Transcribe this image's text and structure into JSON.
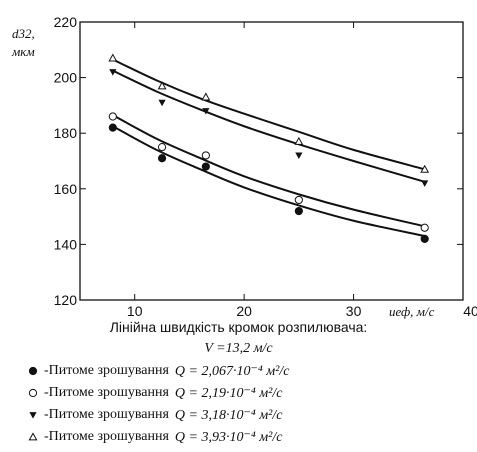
{
  "chart_data": {
    "type": "scatter",
    "title": "",
    "ylabel": "d32,",
    "ylabel_unit": "мкм",
    "xlabel": "uеф, м/с",
    "xlim": [
      5,
      40
    ],
    "ylim": [
      120,
      220
    ],
    "x_ticks": [
      10,
      20,
      30,
      40
    ],
    "y_ticks": [
      120,
      140,
      160,
      180,
      200,
      220
    ],
    "grid": false,
    "legend_position": "bottom",
    "series": [
      {
        "name": "-Питоме зрошування",
        "formula": "Q = 2,067·10⁻⁴ м²/с",
        "marker": "filled-circle",
        "points": [
          [
            8,
            182
          ],
          [
            12.5,
            171
          ],
          [
            16.5,
            168
          ],
          [
            25,
            152
          ],
          [
            36.5,
            142
          ]
        ],
        "fit": [
          [
            8,
            182.5
          ],
          [
            12,
            174
          ],
          [
            16,
            167
          ],
          [
            20,
            160.5
          ],
          [
            25,
            154
          ],
          [
            30,
            148.5
          ],
          [
            36.5,
            143
          ]
        ]
      },
      {
        "name": "-Питоме зрошування",
        "formula": "Q = 2,19·10⁻⁴ м²/с",
        "marker": "open-circle",
        "points": [
          [
            8,
            186
          ],
          [
            12.5,
            175
          ],
          [
            16.5,
            172
          ],
          [
            25,
            156
          ],
          [
            36.5,
            146
          ]
        ],
        "fit": [
          [
            8,
            186.5
          ],
          [
            12,
            178
          ],
          [
            16,
            171
          ],
          [
            20,
            164.5
          ],
          [
            25,
            158
          ],
          [
            30,
            152.5
          ],
          [
            36.5,
            146.5
          ]
        ]
      },
      {
        "name": "-Питоме зрошування",
        "formula": "Q = 3,18·10⁻⁴ м²/с",
        "marker": "filled-triangle-down",
        "points": [
          [
            8,
            202
          ],
          [
            12.5,
            191
          ],
          [
            16.5,
            188
          ],
          [
            25,
            172
          ],
          [
            36.5,
            162
          ]
        ],
        "fit": [
          [
            8,
            202.5
          ],
          [
            12,
            195
          ],
          [
            16,
            188.5
          ],
          [
            20,
            182.5
          ],
          [
            25,
            176
          ],
          [
            30,
            170
          ],
          [
            36.5,
            162.5
          ]
        ]
      },
      {
        "name": "-Питоме зрошування",
        "formula": "Q = 3,93·10⁻⁴ м²/с",
        "marker": "open-triangle-up",
        "points": [
          [
            8,
            207
          ],
          [
            12.5,
            197
          ],
          [
            16.5,
            193
          ],
          [
            25,
            177
          ],
          [
            36.5,
            167
          ]
        ],
        "fit": [
          [
            8,
            206.5
          ],
          [
            12,
            199
          ],
          [
            16,
            192.5
          ],
          [
            20,
            187
          ],
          [
            25,
            180.5
          ],
          [
            30,
            174
          ],
          [
            36.5,
            167
          ]
        ]
      }
    ]
  },
  "caption": {
    "line1": "Лінійна швидкість кромок розпилювача:",
    "line2": "V =13,2 м/с"
  }
}
